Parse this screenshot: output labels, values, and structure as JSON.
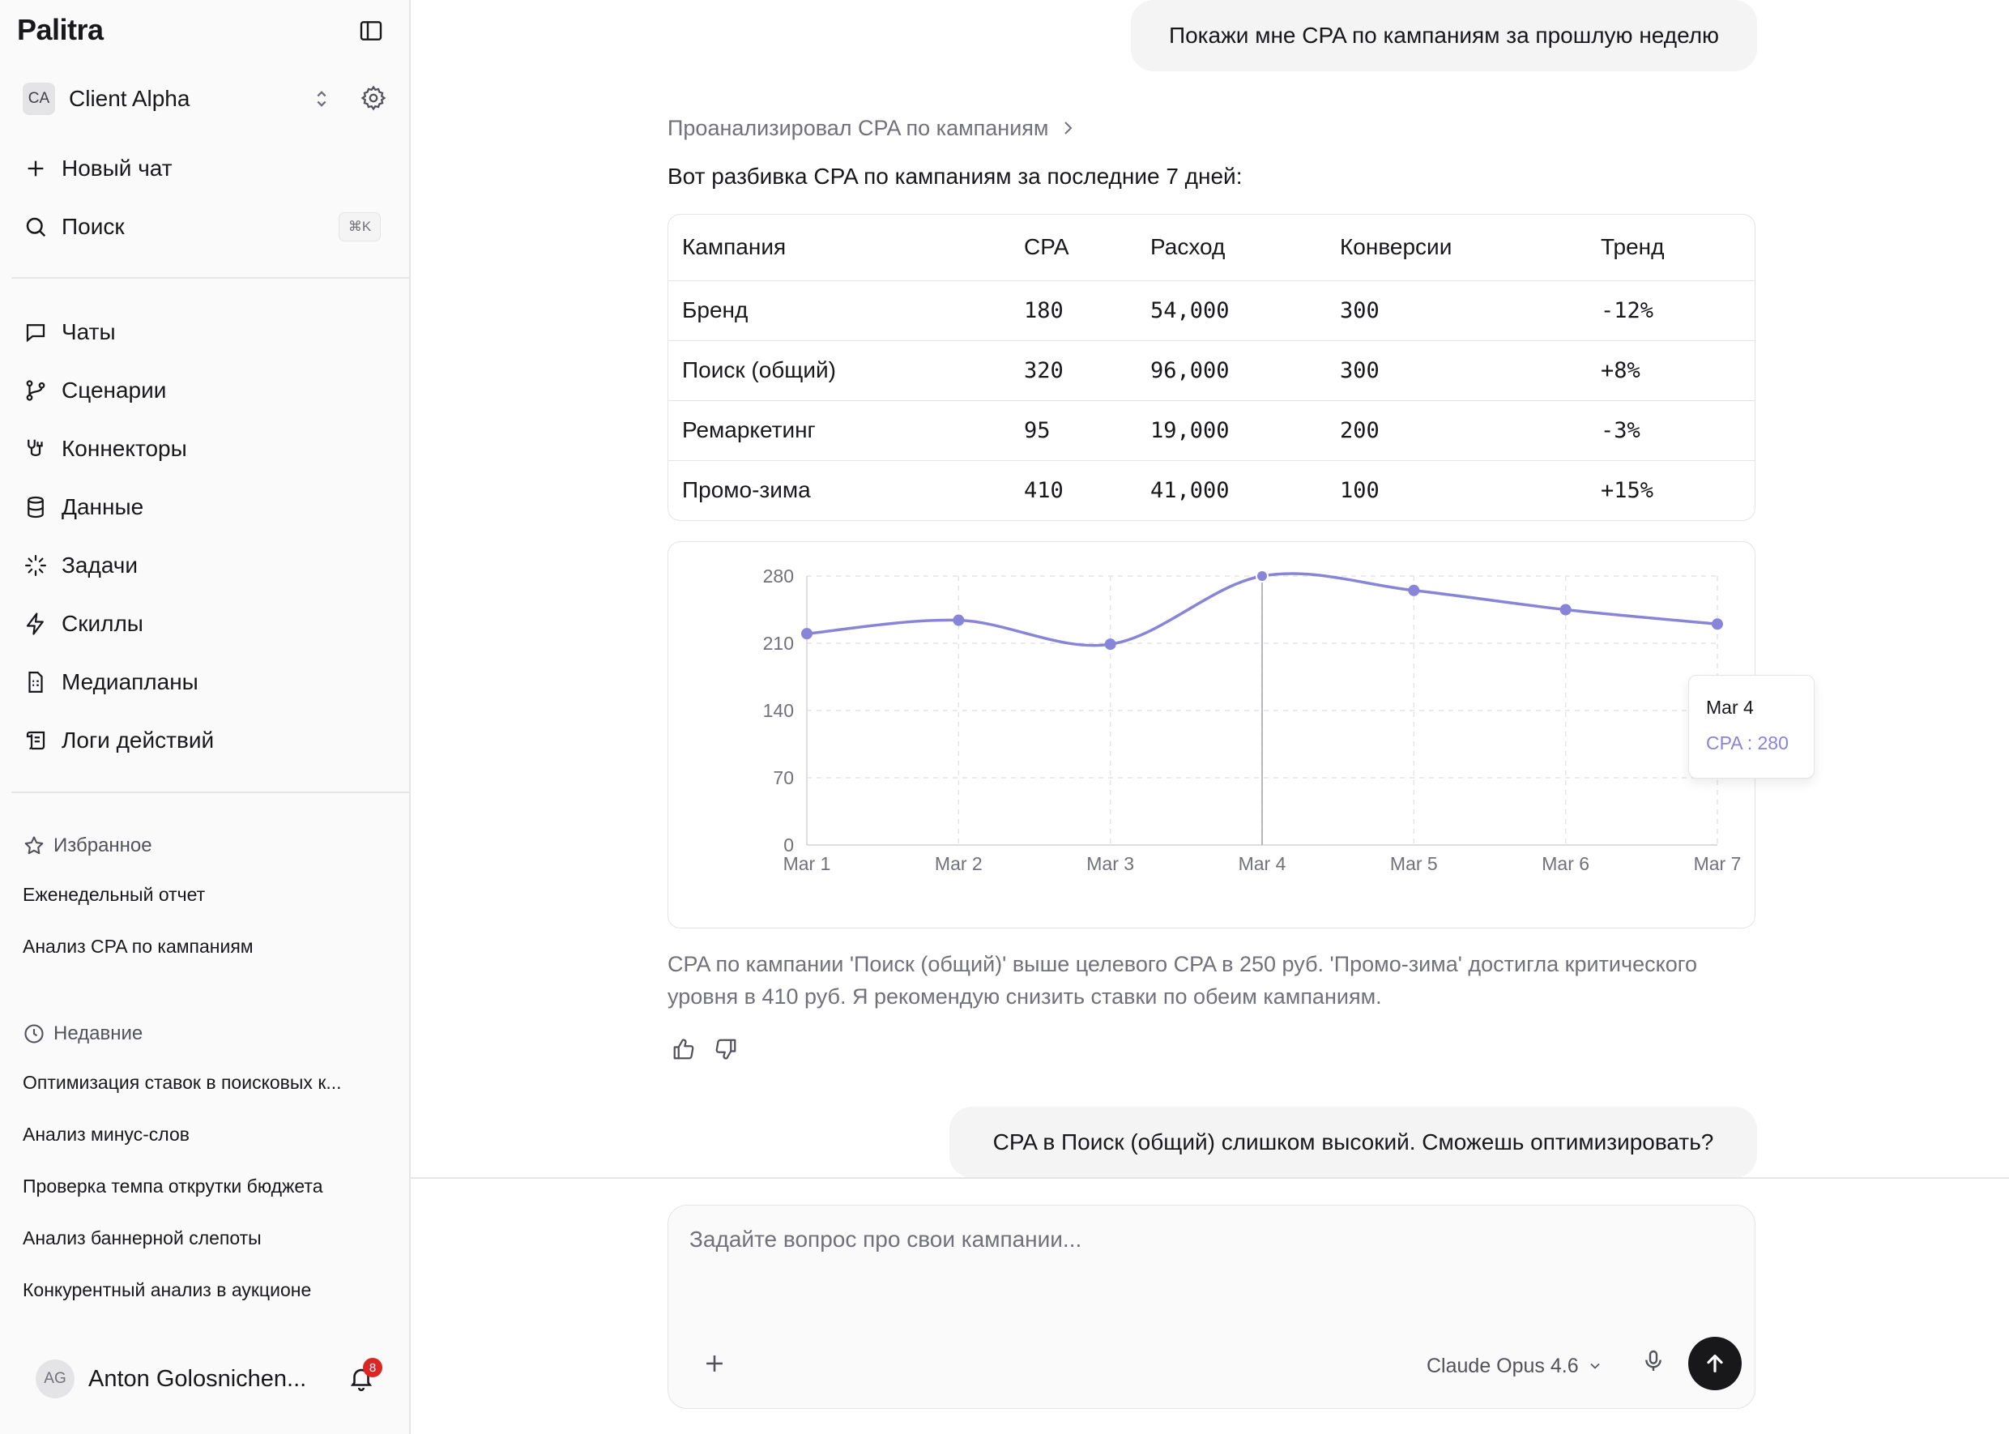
{
  "app": {
    "logo": "Palitra"
  },
  "sidebar": {
    "client": {
      "initials": "CA",
      "name": "Client Alpha"
    },
    "new_chat": "Новый чат",
    "search": {
      "label": "Поиск",
      "shortcut": "⌘K"
    },
    "nav": [
      {
        "label": "Чаты",
        "icon": "chat-icon"
      },
      {
        "label": "Сценарии",
        "icon": "branch-icon"
      },
      {
        "label": "Коннекторы",
        "icon": "plug-icon"
      },
      {
        "label": "Данные",
        "icon": "database-icon"
      },
      {
        "label": "Задачи",
        "icon": "loader-icon"
      },
      {
        "label": "Скиллы",
        "icon": "lightning-icon"
      },
      {
        "label": "Медиапланы",
        "icon": "document-icon"
      },
      {
        "label": "Логи действий",
        "icon": "scroll-icon"
      }
    ],
    "favorites": {
      "title": "Избранное",
      "items": [
        "Еженедельный отчет",
        "Анализ CPA по кампаниям"
      ]
    },
    "recent": {
      "title": "Недавние",
      "items": [
        "Оптимизация ставок в поисковых к...",
        "Анализ минус-слов",
        "Проверка темпа открутки бюджета",
        "Анализ баннерной слепоты",
        "Конкурентный анализ в аукционе"
      ]
    },
    "user": {
      "initials": "AG",
      "name": "Anton Golosnichen...",
      "notifications": "8"
    }
  },
  "chat": {
    "user_message_1": "Покажи мне CPA по кампаниям за прошлую неделю",
    "analysis_label": "Проанализировал CPA по кампаниям",
    "intro": "Вот разбивка CPA по кампаниям за последние 7 дней:",
    "table": {
      "headers": [
        "Кампания",
        "CPA",
        "Расход",
        "Конверсии",
        "Тренд"
      ],
      "rows": [
        [
          "Бренд",
          "180",
          "54,000",
          "300",
          "-12%"
        ],
        [
          "Поиск (общий)",
          "320",
          "96,000",
          "300",
          "+8%"
        ],
        [
          "Ремаркетинг",
          "95",
          "19,000",
          "200",
          "-3%"
        ],
        [
          "Промо-зима",
          "410",
          "41,000",
          "100",
          "+15%"
        ]
      ]
    },
    "tooltip": {
      "title": "Mar 4",
      "value": "CPA : 280"
    },
    "summary": "CPA по кампании 'Поиск (общий)' выше целевого CPA в 250 руб. 'Промо-зима' достигла критического уровня в 410 руб. Я рекомендую снизить ставки по обеим кампаниям.",
    "user_message_2": "CPA в Поиск (общий) слишком высокий. Сможешь оптимизировать?"
  },
  "composer": {
    "placeholder": "Задайте вопрос про свои кампании...",
    "model": "Claude Opus 4.6"
  },
  "chart_data": {
    "type": "line",
    "x": [
      "Mar 1",
      "Mar 2",
      "Mar 3",
      "Mar 4",
      "Mar 5",
      "Mar 6",
      "Mar 7"
    ],
    "series": [
      {
        "name": "CPA",
        "values": [
          220,
          234,
          209,
          280,
          265,
          245,
          230
        ],
        "color": "#8884d8"
      }
    ],
    "yticks": [
      0,
      70,
      140,
      210,
      280
    ],
    "ylim": [
      0,
      280
    ],
    "grid": true,
    "active_point": "Mar 4"
  }
}
